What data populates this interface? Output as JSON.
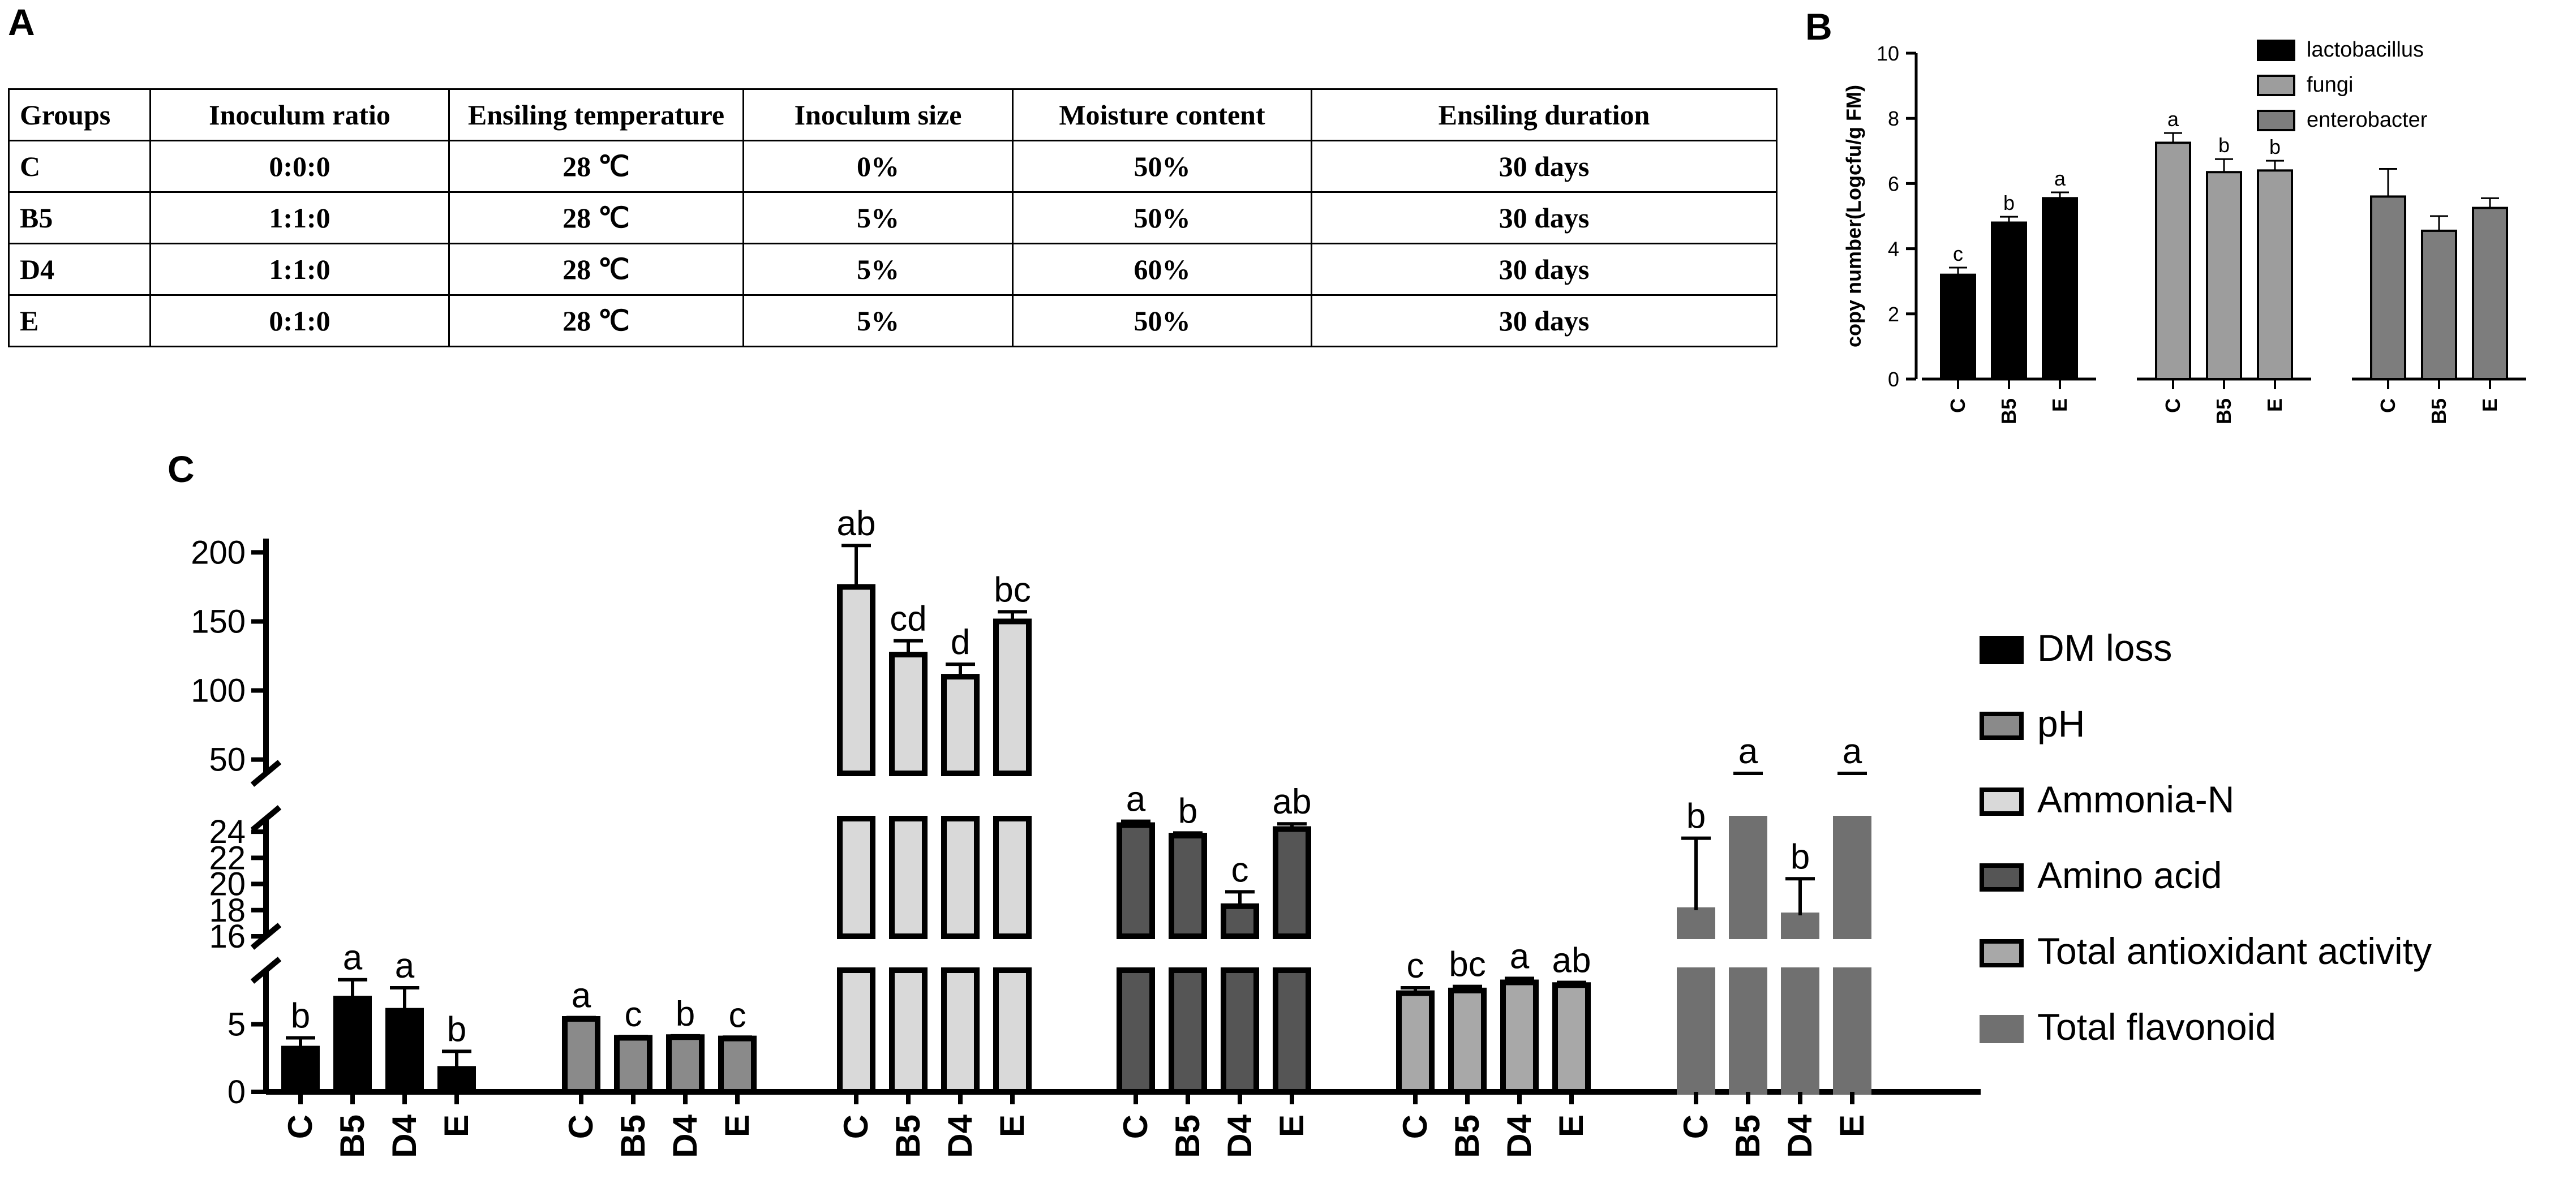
{
  "panels": {
    "a": "A",
    "b": "B",
    "c": "C"
  },
  "table": {
    "headers": [
      "Groups",
      "Inoculum ratio",
      "Ensiling temperature",
      "Inoculum size",
      "Moisture content",
      "Ensiling duration"
    ],
    "rows": [
      [
        "C",
        "0:0:0",
        "28 ℃",
        "0%",
        "50%",
        "30 days"
      ],
      [
        "B5",
        "1:1:0",
        "28 ℃",
        "5%",
        "50%",
        "30 days"
      ],
      [
        "D4",
        "1:1:0",
        "28 ℃",
        "5%",
        "60%",
        "30 days"
      ],
      [
        "E",
        "0:1:0",
        "28 ℃",
        "5%",
        "50%",
        "30 days"
      ]
    ]
  },
  "chart_data": [
    {
      "panel": "B",
      "type": "bar",
      "ylabel": "copy number(Logcfu/g FM)",
      "ylim": [
        0,
        10
      ],
      "yticks": [
        0,
        2,
        4,
        6,
        8,
        10
      ],
      "groups": [
        {
          "name": "lactobacillus",
          "color": "#000000",
          "categories": [
            "C",
            "B5",
            "E"
          ],
          "values": [
            3.2,
            4.8,
            5.55
          ],
          "errors": [
            0.22,
            0.18,
            0.18
          ],
          "letters": [
            "c",
            "b",
            "a"
          ]
        },
        {
          "name": "fungi",
          "color": "#9d9d9d",
          "categories": [
            "C",
            "B5",
            "E"
          ],
          "values": [
            7.25,
            6.35,
            6.4
          ],
          "errors": [
            0.3,
            0.4,
            0.3
          ],
          "letters": [
            "a",
            "b",
            "b"
          ]
        },
        {
          "name": "enterobacter",
          "color": "#7d7d7d",
          "categories": [
            "C",
            "B5",
            "E"
          ],
          "values": [
            5.6,
            4.55,
            5.25
          ],
          "errors": [
            0.85,
            0.45,
            0.3
          ],
          "letters": [
            "",
            "",
            ""
          ]
        }
      ]
    },
    {
      "panel": "C",
      "type": "bar",
      "axis_breaks": [
        [
          9,
          16
        ],
        [
          25,
          40
        ]
      ],
      "yticks": [
        0,
        5,
        16,
        18,
        20,
        22,
        24,
        50,
        100,
        150,
        200
      ],
      "legend": [
        "DM loss",
        "pH",
        "Ammonia-N",
        "Amino acid",
        "Total antioxidant activity",
        "Total flavonoid"
      ],
      "groups": [
        {
          "name": "DM loss",
          "color": "#000000",
          "border": "#000000",
          "categories": [
            "C",
            "B5",
            "D4",
            "E"
          ],
          "values": [
            3.2,
            6.9,
            6.0,
            1.7
          ],
          "errors": [
            0.8,
            1.4,
            1.7,
            1.3
          ],
          "letters": [
            "b",
            "a",
            "a",
            "b"
          ]
        },
        {
          "name": "pH",
          "color": "#8a8a8a",
          "border": "#000000",
          "categories": [
            "C",
            "B5",
            "D4",
            "E"
          ],
          "values": [
            5.4,
            4.0,
            4.05,
            3.95
          ],
          "errors": [
            0.1,
            0.1,
            0.1,
            0.1
          ],
          "letters": [
            "a",
            "c",
            "b",
            "c"
          ]
        },
        {
          "name": "Ammonia-N",
          "color": "#d9d9d9",
          "border": "#000000",
          "categories": [
            "C",
            "B5",
            "D4",
            "E"
          ],
          "values": [
            175,
            126,
            110,
            150
          ],
          "errors": [
            30,
            10,
            9,
            7
          ],
          "letters": [
            "ab",
            "cd",
            "d",
            "bc"
          ]
        },
        {
          "name": "Amino acid",
          "color": "#555555",
          "border": "#000000",
          "categories": [
            "C",
            "B5",
            "D4",
            "E"
          ],
          "values": [
            24.5,
            23.7,
            18.3,
            24.2
          ],
          "errors": [
            0.3,
            0.2,
            1.1,
            0.4
          ],
          "letters": [
            "a",
            "b",
            "c",
            "ab"
          ]
        },
        {
          "name": "Total antioxidant activity",
          "color": "#a8a8a8",
          "border": "#000000",
          "categories": [
            "C",
            "B5",
            "D4",
            "E"
          ],
          "values": [
            7.3,
            7.5,
            8.1,
            7.9
          ],
          "errors": [
            0.4,
            0.3,
            0.3,
            0.2
          ],
          "letters": [
            "c",
            "bc",
            "a",
            "ab"
          ]
        },
        {
          "name": "Total flavonoid",
          "color": "#707070",
          "border": "#707070",
          "categories": [
            "C",
            "B5",
            "D4",
            "E"
          ],
          "values": [
            18.0,
            36.0,
            17.6,
            30.0
          ],
          "errors": [
            5.5,
            3.0,
            2.8,
            3.0
          ],
          "letters": [
            "b",
            "a",
            "b",
            "a"
          ]
        }
      ]
    }
  ]
}
